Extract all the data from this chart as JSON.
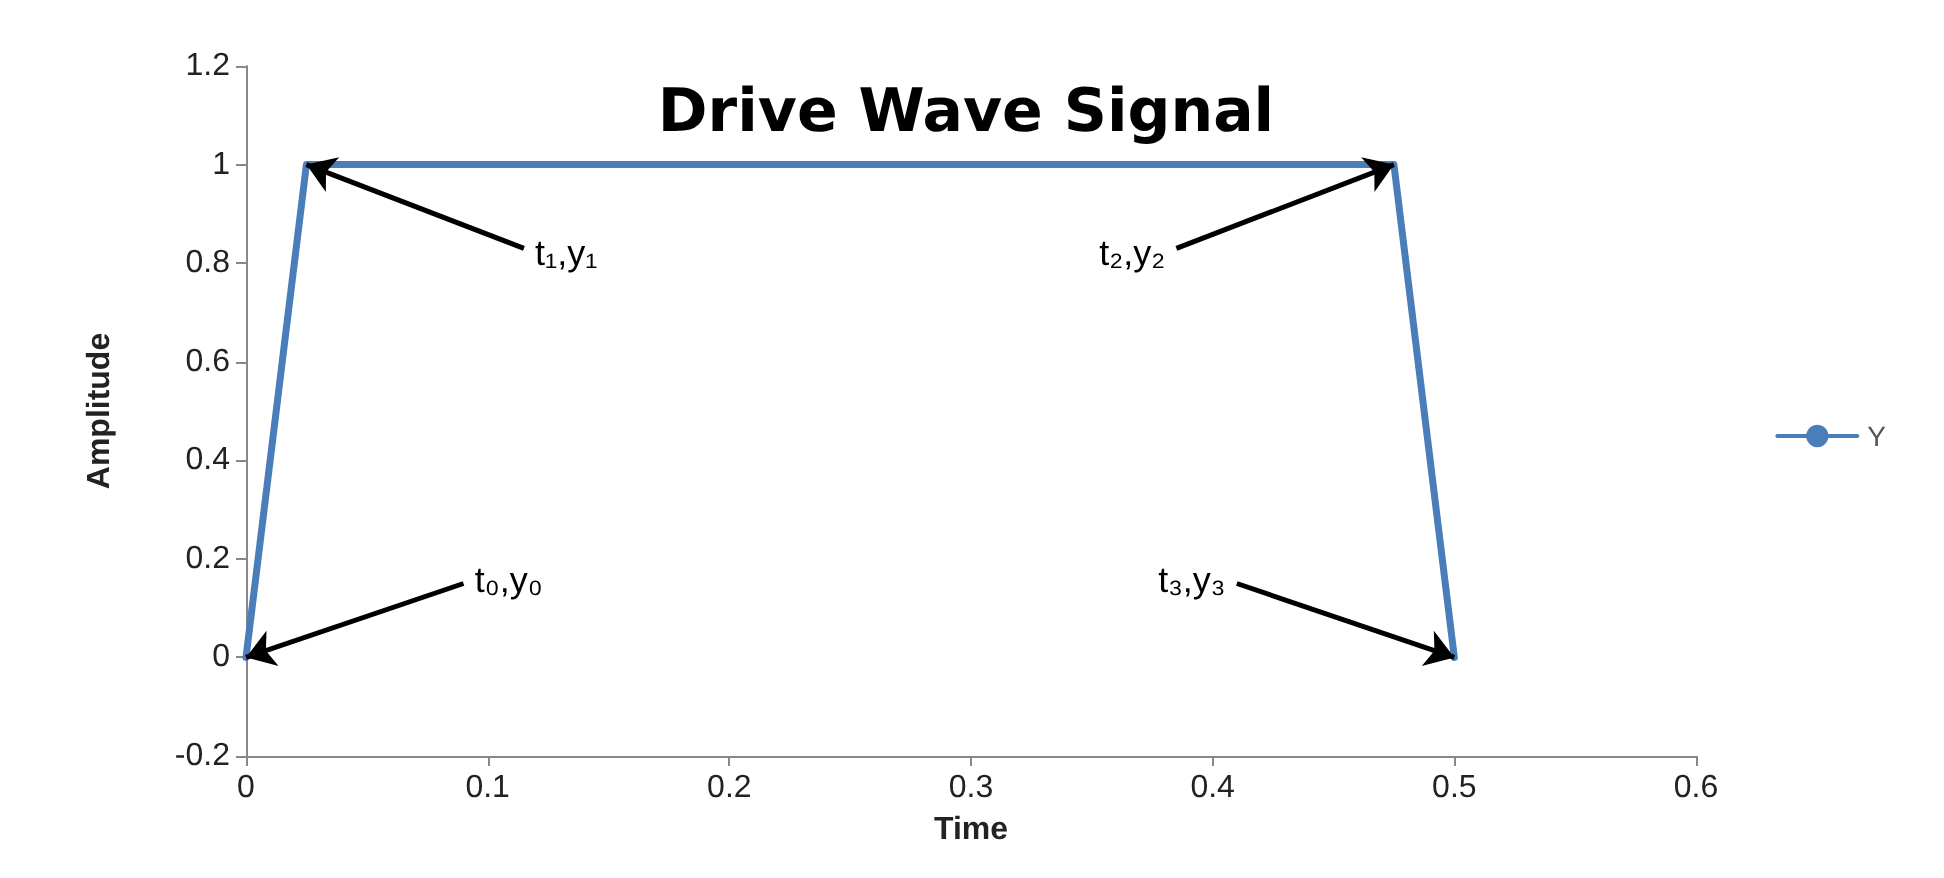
{
  "chart_data": {
    "type": "line",
    "title": "Drive Wave Signal",
    "xlabel": "Time",
    "ylabel": "Amplitude",
    "x": [
      0,
      0.025,
      0.475,
      0.5
    ],
    "series": [
      {
        "name": "Y",
        "color": "#4a7ebb",
        "values": [
          0,
          1,
          1,
          0
        ]
      }
    ],
    "xlim": [
      0,
      0.6
    ],
    "xticks": [
      0,
      0.1,
      0.2,
      0.3,
      0.4,
      0.5,
      0.6
    ],
    "ylim": [
      -0.2,
      1.2
    ],
    "yticks": [
      -0.2,
      0,
      0.2,
      0.4,
      0.6,
      0.8,
      1,
      1.2
    ],
    "grid": false,
    "legend": "right",
    "marker": "none",
    "line_style": "solid",
    "annotations": [
      {
        "text": "t₀,y₀",
        "x": 0,
        "y": 0
      },
      {
        "text": "t₁,y₁",
        "x": 0.025,
        "y": 1
      },
      {
        "text": "t₂,y₂",
        "x": 0.475,
        "y": 1
      },
      {
        "text": "t₃,y₃",
        "x": 0.5,
        "y": 0
      }
    ]
  }
}
